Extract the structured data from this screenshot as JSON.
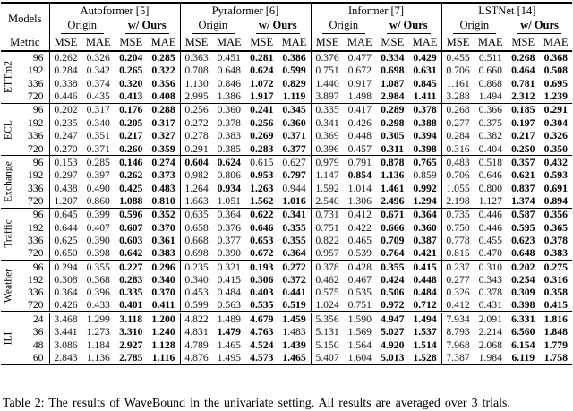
{
  "table": {
    "corner_models": "Models",
    "corner_metric": "Metric",
    "metrics": [
      "MSE",
      "MAE"
    ],
    "groups": [
      {
        "name": "Autoformer [5]",
        "origin_label": "Origin",
        "ours_label": "w/ Ours"
      },
      {
        "name": "Pyraformer [6]",
        "origin_label": "Origin",
        "ours_label": "w/ Ours"
      },
      {
        "name": "Informer [7]",
        "origin_label": "Origin",
        "ours_label": "w/ Ours"
      },
      {
        "name": "LSTNet [14]",
        "origin_label": "Origin",
        "ours_label": "w/ Ours"
      }
    ],
    "sections": [
      {
        "name": "ETTm2",
        "rows": [
          {
            "h": "96",
            "v": [
              "0.262",
              "0.326",
              "0.204",
              "0.285",
              "0.363",
              "0.451",
              "0.281",
              "0.386",
              "0.376",
              "0.477",
              "0.334",
              "0.429",
              "0.455",
              "0.511",
              "0.268",
              "0.368"
            ],
            "bold": [
              2,
              3,
              6,
              7,
              10,
              11,
              14,
              15
            ]
          },
          {
            "h": "192",
            "v": [
              "0.284",
              "0.342",
              "0.265",
              "0.322",
              "0.708",
              "0.648",
              "0.624",
              "0.599",
              "0.751",
              "0.672",
              "0.698",
              "0.631",
              "0.706",
              "0.660",
              "0.464",
              "0.508"
            ],
            "bold": [
              2,
              3,
              6,
              7,
              10,
              11,
              14,
              15
            ]
          },
          {
            "h": "336",
            "v": [
              "0.338",
              "0.374",
              "0.320",
              "0.356",
              "1.130",
              "0.846",
              "1.072",
              "0.829",
              "1.440",
              "0.917",
              "1.087",
              "0.845",
              "1.161",
              "0.868",
              "0.781",
              "0.695"
            ],
            "bold": [
              2,
              3,
              6,
              7,
              10,
              11,
              14,
              15
            ]
          },
          {
            "h": "720",
            "v": [
              "0.446",
              "0.435",
              "0.413",
              "0.408",
              "2.995",
              "1.386",
              "1.917",
              "1.119",
              "3.897",
              "1.498",
              "2.984",
              "1.411",
              "3.288",
              "1.494",
              "2.312",
              "1.239"
            ],
            "bold": [
              2,
              3,
              6,
              7,
              10,
              11,
              14,
              15
            ]
          }
        ]
      },
      {
        "name": "ECL",
        "rows": [
          {
            "h": "96",
            "v": [
              "0.202",
              "0.317",
              "0.176",
              "0.288",
              "0.256",
              "0.360",
              "0.241",
              "0.345",
              "0.335",
              "0.417",
              "0.289",
              "0.378",
              "0.268",
              "0.366",
              "0.185",
              "0.291"
            ],
            "bold": [
              2,
              3,
              6,
              7,
              10,
              11,
              14,
              15
            ]
          },
          {
            "h": "192",
            "v": [
              "0.235",
              "0.340",
              "0.205",
              "0.317",
              "0.272",
              "0.378",
              "0.256",
              "0.360",
              "0.341",
              "0.426",
              "0.298",
              "0.388",
              "0.277",
              "0.375",
              "0.197",
              "0.304"
            ],
            "bold": [
              2,
              3,
              6,
              7,
              10,
              11,
              14,
              15
            ]
          },
          {
            "h": "336",
            "v": [
              "0.247",
              "0.351",
              "0.217",
              "0.327",
              "0.278",
              "0.383",
              "0.269",
              "0.371",
              "0.369",
              "0.448",
              "0.305",
              "0.394",
              "0.284",
              "0.382",
              "0.217",
              "0.326"
            ],
            "bold": [
              2,
              3,
              6,
              7,
              10,
              11,
              14,
              15
            ]
          },
          {
            "h": "720",
            "v": [
              "0.270",
              "0.371",
              "0.260",
              "0.359",
              "0.291",
              "0.385",
              "0.283",
              "0.377",
              "0.396",
              "0.457",
              "0.311",
              "0.398",
              "0.316",
              "0.404",
              "0.250",
              "0.350"
            ],
            "bold": [
              2,
              3,
              6,
              7,
              10,
              11,
              14,
              15
            ]
          }
        ]
      },
      {
        "name": "Exchange",
        "rows": [
          {
            "h": "96",
            "v": [
              "0.153",
              "0.285",
              "0.146",
              "0.274",
              "0.604",
              "0.624",
              "0.615",
              "0.627",
              "0.979",
              "0.791",
              "0.878",
              "0.765",
              "0.483",
              "0.518",
              "0.357",
              "0.432"
            ],
            "bold": [
              2,
              3,
              4,
              5,
              10,
              11,
              14,
              15
            ]
          },
          {
            "h": "192",
            "v": [
              "0.297",
              "0.397",
              "0.262",
              "0.373",
              "0.982",
              "0.806",
              "0.953",
              "0.797",
              "1.147",
              "0.854",
              "1.136",
              "0.859",
              "0.706",
              "0.646",
              "0.621",
              "0.593"
            ],
            "bold": [
              2,
              3,
              6,
              7,
              9,
              10,
              14,
              15
            ]
          },
          {
            "h": "336",
            "v": [
              "0.438",
              "0.490",
              "0.425",
              "0.483",
              "1.264",
              "0.934",
              "1.263",
              "0.944",
              "1.592",
              "1.014",
              "1.461",
              "0.992",
              "1.055",
              "0.800",
              "0.837",
              "0.691"
            ],
            "bold": [
              2,
              3,
              5,
              6,
              10,
              11,
              14,
              15
            ]
          },
          {
            "h": "720",
            "v": [
              "1.207",
              "0.860",
              "1.088",
              "0.810",
              "1.663",
              "1.051",
              "1.562",
              "1.016",
              "2.540",
              "1.306",
              "2.496",
              "1.294",
              "2.198",
              "1.127",
              "1.374",
              "0.894"
            ],
            "bold": [
              2,
              3,
              6,
              7,
              10,
              11,
              14,
              15
            ]
          }
        ]
      },
      {
        "name": "Traffic",
        "rows": [
          {
            "h": "96",
            "v": [
              "0.645",
              "0.399",
              "0.596",
              "0.352",
              "0.635",
              "0.364",
              "0.622",
              "0.341",
              "0.731",
              "0.412",
              "0.671",
              "0.364",
              "0.735",
              "0.446",
              "0.587",
              "0.356"
            ],
            "bold": [
              2,
              3,
              6,
              7,
              10,
              11,
              14,
              15
            ]
          },
          {
            "h": "192",
            "v": [
              "0.644",
              "0.407",
              "0.607",
              "0.370",
              "0.658",
              "0.376",
              "0.646",
              "0.355",
              "0.751",
              "0.422",
              "0.666",
              "0.360",
              "0.750",
              "0.446",
              "0.595",
              "0.365"
            ],
            "bold": [
              2,
              3,
              6,
              7,
              10,
              11,
              14,
              15
            ]
          },
          {
            "h": "336",
            "v": [
              "0.625",
              "0.390",
              "0.603",
              "0.361",
              "0.668",
              "0.377",
              "0.653",
              "0.355",
              "0.822",
              "0.465",
              "0.709",
              "0.387",
              "0.778",
              "0.455",
              "0.623",
              "0.378"
            ],
            "bold": [
              2,
              3,
              6,
              7,
              10,
              11,
              14,
              15
            ]
          },
          {
            "h": "720",
            "v": [
              "0.650",
              "0.398",
              "0.642",
              "0.383",
              "0.698",
              "0.390",
              "0.672",
              "0.364",
              "0.957",
              "0.539",
              "0.764",
              "0.421",
              "0.815",
              "0.470",
              "0.648",
              "0.383"
            ],
            "bold": [
              2,
              3,
              6,
              7,
              10,
              11,
              14,
              15
            ]
          }
        ]
      },
      {
        "name": "Weather",
        "rows": [
          {
            "h": "96",
            "v": [
              "0.294",
              "0.355",
              "0.227",
              "0.296",
              "0.235",
              "0.321",
              "0.193",
              "0.272",
              "0.378",
              "0.428",
              "0.355",
              "0.415",
              "0.237",
              "0.310",
              "0.202",
              "0.275"
            ],
            "bold": [
              2,
              3,
              6,
              7,
              10,
              11,
              14,
              15
            ]
          },
          {
            "h": "192",
            "v": [
              "0.308",
              "0.368",
              "0.283",
              "0.340",
              "0.340",
              "0.415",
              "0.306",
              "0.372",
              "0.462",
              "0.467",
              "0.424",
              "0.448",
              "0.277",
              "0.343",
              "0.254",
              "0.316"
            ],
            "bold": [
              2,
              3,
              6,
              7,
              10,
              11,
              14,
              15
            ]
          },
          {
            "h": "336",
            "v": [
              "0.364",
              "0.396",
              "0.335",
              "0.370",
              "0.453",
              "0.484",
              "0.403",
              "0.441",
              "0.575",
              "0.535",
              "0.506",
              "0.484",
              "0.326",
              "0.378",
              "0.309",
              "0.358"
            ],
            "bold": [
              2,
              3,
              6,
              7,
              10,
              11,
              14,
              15
            ]
          },
          {
            "h": "720",
            "v": [
              "0.426",
              "0.433",
              "0.401",
              "0.411",
              "0.599",
              "0.563",
              "0.535",
              "0.519",
              "1.024",
              "0.751",
              "0.972",
              "0.712",
              "0.412",
              "0.431",
              "0.398",
              "0.415"
            ],
            "bold": [
              2,
              3,
              6,
              7,
              10,
              11,
              14,
              15
            ]
          }
        ]
      },
      {
        "name": "ILI",
        "thick_rule": true,
        "rows": [
          {
            "h": "24",
            "v": [
              "3.468",
              "1.299",
              "3.118",
              "1.200",
              "4.822",
              "1.489",
              "4.679",
              "1.459",
              "5.356",
              "1.590",
              "4.947",
              "1.494",
              "7.934",
              "2.091",
              "6.331",
              "1.816"
            ],
            "bold": [
              2,
              3,
              6,
              7,
              10,
              11,
              14,
              15
            ]
          },
          {
            "h": "36",
            "v": [
              "3.441",
              "1.273",
              "3.310",
              "1.240",
              "4.831",
              "1.479",
              "4.763",
              "1.483",
              "5.131",
              "1.569",
              "5.027",
              "1.537",
              "8.793",
              "2.214",
              "6.560",
              "1.848"
            ],
            "bold": [
              2,
              3,
              5,
              6,
              10,
              11,
              14,
              15
            ]
          },
          {
            "h": "48",
            "v": [
              "3.086",
              "1.184",
              "2.927",
              "1.128",
              "4.789",
              "1.465",
              "4.524",
              "1.439",
              "5.150",
              "1.564",
              "4.920",
              "1.514",
              "7.968",
              "2.068",
              "6.154",
              "1.779"
            ],
            "bold": [
              2,
              3,
              6,
              7,
              10,
              11,
              14,
              15
            ]
          },
          {
            "h": "60",
            "v": [
              "2.843",
              "1.136",
              "2.785",
              "1.116",
              "4.876",
              "1.495",
              "4.573",
              "1.465",
              "5.407",
              "1.604",
              "5.013",
              "1.528",
              "7.387",
              "1.984",
              "6.119",
              "1.758"
            ],
            "bold": [
              2,
              3,
              6,
              7,
              10,
              11,
              14,
              15
            ]
          }
        ]
      }
    ]
  },
  "caption": "Table 2: The results of WaveBound in the univariate setting. All results are averaged over 3 trials."
}
